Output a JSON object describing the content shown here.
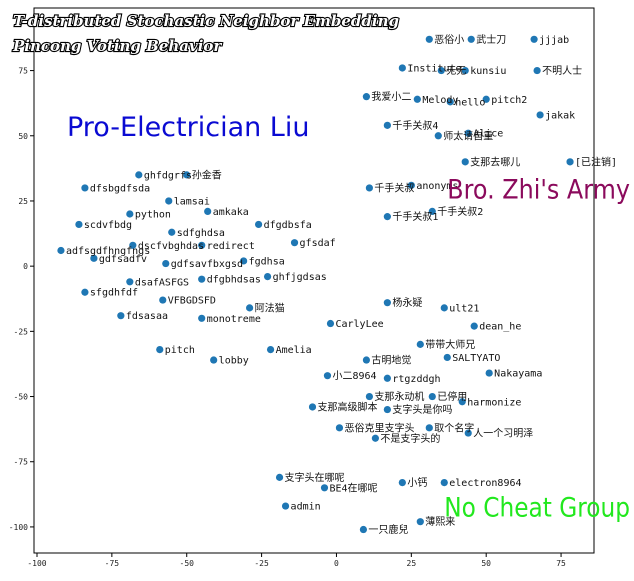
{
  "chart_data": {
    "type": "scatter",
    "title": "T-distributed Stochastic Neighbor Embedding",
    "subtitle": "Pincong Voting Behavior",
    "xlabel": "",
    "ylabel": "",
    "xlim": [
      -101,
      86
    ],
    "ylim": [
      -110,
      99
    ],
    "xticks": [
      -100,
      -75,
      -50,
      -25,
      0,
      25,
      50,
      75
    ],
    "yticks": [
      -100,
      -75,
      -50,
      -25,
      0,
      25,
      50,
      75
    ],
    "grid": false,
    "marker_color": "#1f77b4",
    "points": [
      {
        "x": 31,
        "y": 87,
        "label": "恶俗小",
        "color": "#1f77b4"
      },
      {
        "x": 45,
        "y": 87,
        "label": "武士刀",
        "color": "#1f77b4"
      },
      {
        "x": 66,
        "y": 87,
        "label": "jjjab",
        "color": "#1f77b4"
      },
      {
        "x": 22,
        "y": 76,
        "label": "Institute",
        "color": "#1f77b4"
      },
      {
        "x": 35,
        "y": 75,
        "label": "无无",
        "color": "#1f77b4"
      },
      {
        "x": 43,
        "y": 75,
        "label": "kunsiu",
        "color": "#1f77b4"
      },
      {
        "x": 67,
        "y": 75,
        "label": "不明人士",
        "color": "#1f77b4"
      },
      {
        "x": 10,
        "y": 65,
        "label": "我爱小二",
        "color": "#1f77b4"
      },
      {
        "x": 27,
        "y": 64,
        "label": "Melody",
        "color": "#1f77b4"
      },
      {
        "x": 38,
        "y": 63,
        "label": "hello",
        "color": "#1f77b4"
      },
      {
        "x": 50,
        "y": 64,
        "label": "pitch2",
        "color": "#1f77b4"
      },
      {
        "x": 68,
        "y": 58,
        "label": "jakak",
        "color": "#1f77b4"
      },
      {
        "x": 17,
        "y": 54,
        "label": "千手关叔4",
        "color": "#1f77b4"
      },
      {
        "x": 34,
        "y": 50,
        "label": "师太请自重",
        "color": "#1f77b4"
      },
      {
        "x": 44,
        "y": 51,
        "label": "Alice",
        "color": "#1f77b4"
      },
      {
        "x": 43,
        "y": 40,
        "label": "支那去哪儿",
        "color": "#1f77b4"
      },
      {
        "x": 78,
        "y": 40,
        "label": "[已注销]",
        "color": "#1f77b4"
      },
      {
        "x": 11,
        "y": 30,
        "label": "千手关叔",
        "color": "#1f77b4"
      },
      {
        "x": 25,
        "y": 31,
        "label": "anonyms",
        "color": "#1f77b4"
      },
      {
        "x": 17,
        "y": 19,
        "label": "千手关叔1",
        "color": "#1f77b4"
      },
      {
        "x": 32,
        "y": 21,
        "label": "千手关叔2",
        "color": "#1f77b4"
      },
      {
        "x": -66,
        "y": 35,
        "label": "ghfdgrfs",
        "color": "#1f77b4"
      },
      {
        "x": -50,
        "y": 35,
        "label": "孙金香",
        "color": "#1f77b4"
      },
      {
        "x": -84,
        "y": 30,
        "label": "dfsbgdfsda",
        "color": "#1f77b4"
      },
      {
        "x": -56,
        "y": 25,
        "label": "lamsai",
        "color": "#1f77b4"
      },
      {
        "x": -69,
        "y": 20,
        "label": "python",
        "color": "#1f77b4"
      },
      {
        "x": -43,
        "y": 21,
        "label": "amkaka",
        "color": "#1f77b4"
      },
      {
        "x": -86,
        "y": 16,
        "label": "scdvfbdg",
        "color": "#1f77b4"
      },
      {
        "x": -55,
        "y": 13,
        "label": "sdfghdsa",
        "color": "#1f77b4"
      },
      {
        "x": -26,
        "y": 16,
        "label": "dfgdbsfa",
        "color": "#1f77b4"
      },
      {
        "x": -68,
        "y": 8,
        "label": "dscfvbghdas",
        "color": "#1f77b4"
      },
      {
        "x": -45,
        "y": 8,
        "label": "redirect",
        "color": "#1f77b4"
      },
      {
        "x": -14,
        "y": 9,
        "label": "gfsdaf",
        "color": "#1f77b4"
      },
      {
        "x": -92,
        "y": 6,
        "label": "adfsgdfhngfngs",
        "color": "#1f77b4"
      },
      {
        "x": -81,
        "y": 3,
        "label": "gdfsadfv",
        "color": "#1f77b4"
      },
      {
        "x": -57,
        "y": 1,
        "label": "gdfsavfbxgsd",
        "color": "#1f77b4"
      },
      {
        "x": -31,
        "y": 2,
        "label": "fgdhsa",
        "color": "#1f77b4"
      },
      {
        "x": -69,
        "y": -6,
        "label": "dsafASFGS",
        "color": "#1f77b4"
      },
      {
        "x": -45,
        "y": -5,
        "label": "dfgbhdsas",
        "color": "#1f77b4"
      },
      {
        "x": -23,
        "y": -4,
        "label": "ghfjgdsas",
        "color": "#1f77b4"
      },
      {
        "x": -84,
        "y": -10,
        "label": "sfgdhfdf",
        "color": "#1f77b4"
      },
      {
        "x": -58,
        "y": -13,
        "label": "VFBGDSFD",
        "color": "#1f77b4"
      },
      {
        "x": 17,
        "y": -14,
        "label": "杨永疑",
        "color": "#1f77b4"
      },
      {
        "x": 36,
        "y": -16,
        "label": "ult21",
        "color": "#1f77b4"
      },
      {
        "x": -72,
        "y": -19,
        "label": "fdsasaa",
        "color": "#1f77b4"
      },
      {
        "x": -45,
        "y": -20,
        "label": "monotreme",
        "color": "#1f77b4"
      },
      {
        "x": -29,
        "y": -16,
        "label": "阿法猫",
        "color": "#1f77b4"
      },
      {
        "x": -2,
        "y": -22,
        "label": "CarlyLee",
        "color": "#1f77b4"
      },
      {
        "x": 46,
        "y": -23,
        "label": "dean_he",
        "color": "#1f77b4"
      },
      {
        "x": -59,
        "y": -32,
        "label": "pitch",
        "color": "#1f77b4"
      },
      {
        "x": -41,
        "y": -36,
        "label": "lobby",
        "color": "#1f77b4"
      },
      {
        "x": -22,
        "y": -32,
        "label": "Amelia",
        "color": "#1f77b4"
      },
      {
        "x": 28,
        "y": -30,
        "label": "带带大师兄",
        "color": "#1f77b4"
      },
      {
        "x": 10,
        "y": -36,
        "label": "古明地觉",
        "color": "#1f77b4"
      },
      {
        "x": 37,
        "y": -35,
        "label": "SALTYATO",
        "color": "#1f77b4"
      },
      {
        "x": -3,
        "y": -42,
        "label": "小二8964",
        "color": "#1f77b4"
      },
      {
        "x": 17,
        "y": -43,
        "label": "rtgzddgh",
        "color": "#1f77b4"
      },
      {
        "x": 51,
        "y": -41,
        "label": "Nakayama",
        "color": "#1f77b4"
      },
      {
        "x": 11,
        "y": -50,
        "label": "支那永动机",
        "color": "#1f77b4"
      },
      {
        "x": 32,
        "y": -50,
        "label": "已停用",
        "color": "#1f77b4"
      },
      {
        "x": 42,
        "y": -52,
        "label": "harmonize",
        "color": "#1f77b4"
      },
      {
        "x": -8,
        "y": -54,
        "label": "支那高级脚本",
        "color": "#1f77b4"
      },
      {
        "x": 17,
        "y": -55,
        "label": "支字头是你吗",
        "color": "#1f77b4"
      },
      {
        "x": 1,
        "y": -62,
        "label": "恶俗克里支字头",
        "color": "#1f77b4"
      },
      {
        "x": 31,
        "y": -62,
        "label": "取个名字",
        "color": "#1f77b4"
      },
      {
        "x": 13,
        "y": -66,
        "label": "不是支字头的",
        "color": "#1f77b4"
      },
      {
        "x": 44,
        "y": -64,
        "label": "人一个习明泽",
        "color": "#1f77b4"
      },
      {
        "x": -19,
        "y": -81,
        "label": "支字头在哪呢",
        "color": "#1f77b4"
      },
      {
        "x": -4,
        "y": -85,
        "label": "BE4在哪呢",
        "color": "#1f77b4"
      },
      {
        "x": 22,
        "y": -83,
        "label": "小钙",
        "color": "#1f77b4"
      },
      {
        "x": 36,
        "y": -83,
        "label": "electron8964",
        "color": "#1f77b4"
      },
      {
        "x": -17,
        "y": -92,
        "label": "admin",
        "color": "#1f77b4"
      },
      {
        "x": 9,
        "y": -101,
        "label": "一只鹿兒",
        "color": "#1f77b4"
      },
      {
        "x": 28,
        "y": -98,
        "label": "薄熙来",
        "color": "#1f77b4"
      }
    ],
    "annotations": [
      {
        "text": "Pro-Electrician Liu",
        "x": -90,
        "y": 50,
        "color": "#0a0ad2"
      },
      {
        "text": "Bro. Zhi's Army",
        "x": 37,
        "y": 26,
        "color": "#8b0a5c"
      },
      {
        "text": "No Cheat Group",
        "x": 36,
        "y": -96,
        "color": "#22e81e"
      }
    ]
  }
}
